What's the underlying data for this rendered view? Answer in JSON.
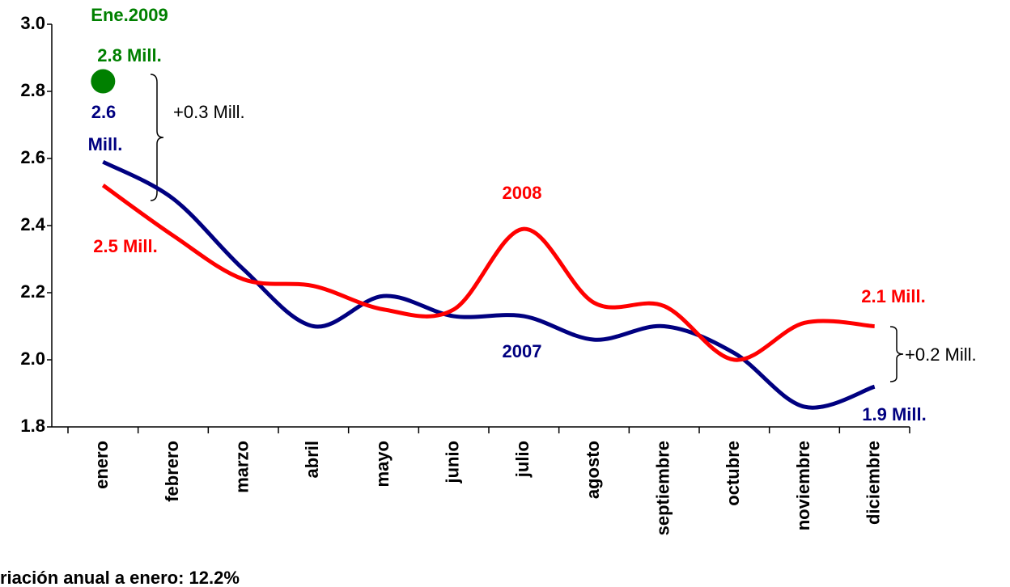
{
  "chart_data": {
    "type": "line",
    "categories": [
      "enero",
      "febrero",
      "marzo",
      "abril",
      "mayo",
      "junio",
      "julio",
      "agosto",
      "septiembre",
      "octubre",
      "noviembre",
      "diciembre"
    ],
    "series": [
      {
        "name": "2007",
        "color": "#000080",
        "values": [
          2.59,
          2.48,
          2.27,
          2.1,
          2.19,
          2.13,
          2.13,
          2.06,
          2.1,
          2.02,
          1.86,
          1.92
        ]
      },
      {
        "name": "2008",
        "color": "#ff0000",
        "values": [
          2.52,
          2.37,
          2.24,
          2.22,
          2.15,
          2.15,
          2.39,
          2.17,
          2.16,
          2.0,
          2.11,
          2.1
        ]
      },
      {
        "name": "Ene.2009",
        "color": "#008000",
        "values": [
          2.83,
          null,
          null,
          null,
          null,
          null,
          null,
          null,
          null,
          null,
          null,
          null
        ]
      }
    ],
    "ylim": [
      1.8,
      3.0
    ],
    "yticks": [
      {
        "value": 3.0,
        "label": "3.0"
      },
      2.8,
      2.6,
      2.4,
      2.2,
      {
        "value": 2.0,
        "label": "2.0"
      },
      1.8
    ],
    "annotations": {
      "jan2009_value": "2.8 Mill.",
      "jan2007_value_a": "2.6",
      "jan2007_value_b": "Mill.",
      "diff_jan": "+0.3 Mill.",
      "jan2008_value": "2.5 Mill.",
      "dec2008_value": "2.1 Mill.",
      "dec2007_value": "1.9 Mill.",
      "diff_dec": "+0.2 Mill.",
      "footnote": "riación anual a enero: 12.2%"
    }
  }
}
